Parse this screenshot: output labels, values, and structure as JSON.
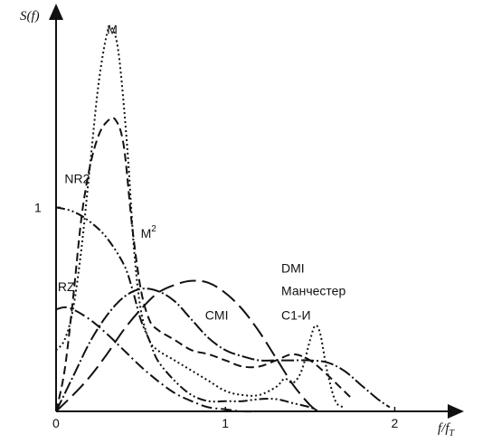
{
  "chart_data": {
    "type": "line",
    "ylabel": "S(f)",
    "xlabel": "f/f",
    "xlabel_sub": "T",
    "xlim": [
      0,
      2.35
    ],
    "ylim": [
      0,
      1.95
    ],
    "x_ticks": [
      {
        "value": 0,
        "label": "0"
      },
      {
        "value": 1,
        "label": "1"
      },
      {
        "value": 2,
        "label": "2"
      }
    ],
    "y_ticks": [
      {
        "value": 1,
        "label": "1"
      }
    ],
    "grid": false,
    "series": [
      {
        "name": "M",
        "dash": "2,3",
        "label_at": [
          0.3,
          1.85
        ],
        "points": [
          [
            0,
            0.3
          ],
          [
            0.05,
            0.35
          ],
          [
            0.1,
            0.5
          ],
          [
            0.15,
            0.8
          ],
          [
            0.2,
            1.2
          ],
          [
            0.25,
            1.6
          ],
          [
            0.3,
            1.85
          ],
          [
            0.33,
            1.88
          ],
          [
            0.37,
            1.75
          ],
          [
            0.42,
            1.3
          ],
          [
            0.46,
            0.8
          ],
          [
            0.5,
            0.5
          ],
          [
            0.55,
            0.35
          ],
          [
            0.6,
            0.3
          ],
          [
            0.7,
            0.25
          ],
          [
            0.8,
            0.2
          ],
          [
            0.9,
            0.15
          ],
          [
            1.0,
            0.1
          ],
          [
            1.1,
            0.08
          ],
          [
            1.2,
            0.08
          ],
          [
            1.3,
            0.12
          ],
          [
            1.35,
            0.16
          ],
          [
            1.4,
            0.14
          ],
          [
            1.45,
            0.2
          ],
          [
            1.5,
            0.35
          ],
          [
            1.53,
            0.42
          ],
          [
            1.56,
            0.38
          ],
          [
            1.6,
            0.2
          ],
          [
            1.65,
            0.05
          ],
          [
            1.7,
            0.02
          ]
        ]
      },
      {
        "name": "NR2",
        "dash": "9,5",
        "label_at": [
          0.05,
          1.12
        ],
        "points": [
          [
            0,
            0
          ],
          [
            0.05,
            0.2
          ],
          [
            0.1,
            0.55
          ],
          [
            0.15,
            0.95
          ],
          [
            0.2,
            1.2
          ],
          [
            0.25,
            1.35
          ],
          [
            0.3,
            1.42
          ],
          [
            0.35,
            1.43
          ],
          [
            0.4,
            1.3
          ],
          [
            0.45,
            0.9
          ],
          [
            0.5,
            0.6
          ],
          [
            0.55,
            0.45
          ],
          [
            0.6,
            0.4
          ],
          [
            0.7,
            0.35
          ],
          [
            0.8,
            0.3
          ],
          [
            0.9,
            0.28
          ],
          [
            1.0,
            0.25
          ],
          [
            1.1,
            0.22
          ],
          [
            1.2,
            0.22
          ],
          [
            1.3,
            0.25
          ],
          [
            1.4,
            0.28
          ],
          [
            1.5,
            0.25
          ],
          [
            1.6,
            0.18
          ],
          [
            1.7,
            0.1
          ],
          [
            1.75,
            0.06
          ]
        ]
      },
      {
        "name": "M2",
        "label_prefix": "M",
        "label_sup": "2",
        "dash": "10,3,2,3,2,3",
        "label_at": [
          0.5,
          0.85
        ],
        "points": [
          [
            0,
            1.0
          ],
          [
            0.1,
            0.98
          ],
          [
            0.2,
            0.93
          ],
          [
            0.3,
            0.85
          ],
          [
            0.4,
            0.72
          ],
          [
            0.45,
            0.6
          ],
          [
            0.5,
            0.45
          ],
          [
            0.55,
            0.35
          ],
          [
            0.6,
            0.25
          ],
          [
            0.7,
            0.15
          ],
          [
            0.8,
            0.08
          ],
          [
            0.9,
            0.05
          ],
          [
            1.0,
            0.05
          ],
          [
            1.1,
            0.05
          ],
          [
            1.2,
            0.06
          ],
          [
            1.3,
            0.06
          ],
          [
            1.4,
            0.04
          ],
          [
            1.5,
            0.02
          ],
          [
            1.55,
            0.0
          ]
        ]
      },
      {
        "name": "RZ",
        "dash": "12,4,2,4",
        "label_at": [
          0.01,
          0.59
        ],
        "points": [
          [
            0,
            0.5
          ],
          [
            0.05,
            0.51
          ],
          [
            0.1,
            0.5
          ],
          [
            0.2,
            0.45
          ],
          [
            0.3,
            0.38
          ],
          [
            0.4,
            0.3
          ],
          [
            0.5,
            0.22
          ],
          [
            0.6,
            0.15
          ],
          [
            0.7,
            0.09
          ],
          [
            0.8,
            0.05
          ],
          [
            0.9,
            0.02
          ],
          [
            1.0,
            0.01
          ],
          [
            1.1,
            0.0
          ],
          [
            1.2,
            0.0
          ]
        ]
      },
      {
        "name": "CMI",
        "dash": "14,3,2,3",
        "label_at": [
          0.88,
          0.45
        ],
        "points": [
          [
            0,
            0
          ],
          [
            0.1,
            0.17
          ],
          [
            0.2,
            0.34
          ],
          [
            0.3,
            0.47
          ],
          [
            0.4,
            0.56
          ],
          [
            0.5,
            0.6
          ],
          [
            0.6,
            0.59
          ],
          [
            0.7,
            0.54
          ],
          [
            0.8,
            0.45
          ],
          [
            0.9,
            0.36
          ],
          [
            1.0,
            0.3
          ],
          [
            1.1,
            0.27
          ],
          [
            1.2,
            0.25
          ],
          [
            1.3,
            0.25
          ],
          [
            1.4,
            0.25
          ],
          [
            1.5,
            0.25
          ],
          [
            1.6,
            0.24
          ],
          [
            1.7,
            0.2
          ],
          [
            1.8,
            0.13
          ],
          [
            1.9,
            0.06
          ],
          [
            1.97,
            0.02
          ]
        ]
      },
      {
        "name": "DMI",
        "dash": "18,7",
        "label_at": [
          1.33,
          0.68
        ],
        "points": [
          [
            0,
            0
          ],
          [
            0.1,
            0.08
          ],
          [
            0.2,
            0.17
          ],
          [
            0.3,
            0.28
          ],
          [
            0.4,
            0.4
          ],
          [
            0.5,
            0.5
          ],
          [
            0.6,
            0.58
          ],
          [
            0.7,
            0.62
          ],
          [
            0.8,
            0.64
          ],
          [
            0.9,
            0.63
          ],
          [
            1.0,
            0.58
          ],
          [
            1.1,
            0.5
          ],
          [
            1.2,
            0.39
          ],
          [
            1.3,
            0.26
          ],
          [
            1.4,
            0.13
          ],
          [
            1.5,
            0.03
          ],
          [
            1.55,
            0.0
          ]
        ]
      }
    ],
    "annotations": [
      {
        "text": "Манчестер",
        "at": [
          1.33,
          0.57
        ]
      },
      {
        "text": "C1-И",
        "at": [
          1.33,
          0.45
        ]
      }
    ]
  }
}
